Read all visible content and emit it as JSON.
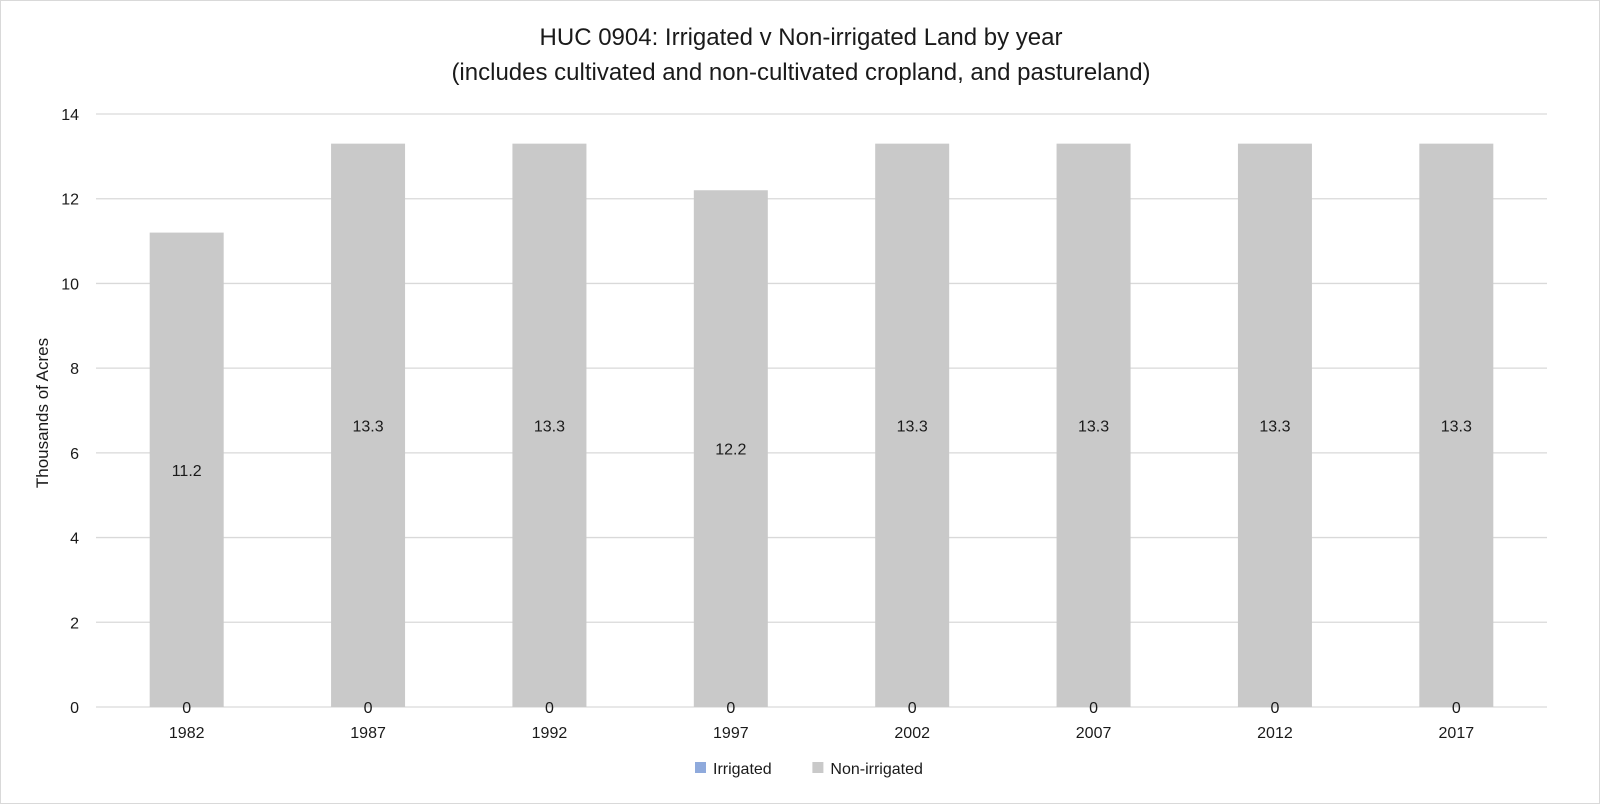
{
  "chart_data": {
    "type": "bar",
    "stacked": true,
    "title": "HUC 0904: Irrigated v Non-irrigated Land by year",
    "subtitle": "(includes cultivated and non-cultivated cropland, and pastureland)",
    "xlabel": "",
    "ylabel": "Thousands of Acres",
    "ylim": [
      0,
      14
    ],
    "yticks": [
      0,
      2,
      4,
      6,
      8,
      10,
      12,
      14
    ],
    "grid": true,
    "legend_position": "bottom",
    "categories": [
      "1982",
      "1987",
      "1992",
      "1997",
      "2002",
      "2007",
      "2012",
      "2017"
    ],
    "series": [
      {
        "name": "Irrigated",
        "color": "#8faadc",
        "values": [
          0,
          0,
          0,
          0,
          0,
          0,
          0,
          0
        ]
      },
      {
        "name": "Non-irrigated",
        "color": "#c9c9c9",
        "values": [
          11.2,
          13.3,
          13.3,
          12.2,
          13.3,
          13.3,
          13.3,
          13.3
        ]
      }
    ]
  }
}
